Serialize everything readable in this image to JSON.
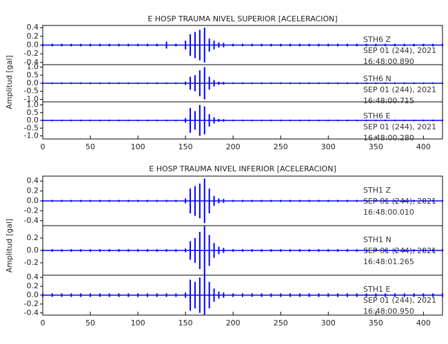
{
  "chart_data": [
    {
      "type": "seismogram",
      "title": "E HOSP TRAUMA NIVEL SUPERIOR [ACELERACION]",
      "y_label": "Amplitud [gal]",
      "xlim": [
        0,
        420
      ],
      "xticks": [
        0,
        50,
        100,
        150,
        200,
        250,
        300,
        350,
        400
      ],
      "x": [
        0,
        10,
        20,
        30,
        40,
        50,
        60,
        70,
        80,
        90,
        100,
        110,
        120,
        130,
        140,
        150,
        155,
        160,
        165,
        170,
        175,
        180,
        185,
        190,
        200,
        210,
        220,
        230,
        240,
        250,
        260,
        270,
        280,
        290,
        300,
        310,
        320,
        330,
        340,
        350,
        360,
        370,
        380,
        390,
        400,
        410,
        420
      ],
      "series": [
        {
          "name": "STH6 Z",
          "date": "SEP 01 (244), 2021",
          "time": "16:48:00.890",
          "color": "#0000ff",
          "ylim": [
            -0.45,
            0.45
          ],
          "yticks": [
            -0.4,
            -0.2,
            {
              "value": 0,
              "label": "0.0"
            },
            0.2,
            0.4
          ],
          "values": [
            0.03,
            0.03,
            0.03,
            0.03,
            0.03,
            0.03,
            0.03,
            0.03,
            0.03,
            0.03,
            0.03,
            0.03,
            0.03,
            0.08,
            0.03,
            0.1,
            0.25,
            0.3,
            0.35,
            0.4,
            0.15,
            0.1,
            0.06,
            0.05,
            0.03,
            0.03,
            0.03,
            0.03,
            0.03,
            0.03,
            0.03,
            0.03,
            0.03,
            0.03,
            0.03,
            0.03,
            0.03,
            0.03,
            0.03,
            0.03,
            0.03,
            0.03,
            0.03,
            0.03,
            0.03,
            0.03,
            0.03
          ]
        },
        {
          "name": "STH6 N",
          "date": "SEP 01 (244), 2021",
          "time": "16:48:00.715",
          "color": "#0000ff",
          "ylim": [
            -1.15,
            1.15
          ],
          "yticks": [
            {
              "value": -1,
              "label": "-1.0"
            },
            -0.5,
            {
              "value": 0,
              "label": "0.0"
            },
            0.5,
            {
              "value": 1,
              "label": "1.0"
            }
          ],
          "values": [
            0.05,
            0.05,
            0.05,
            0.05,
            0.05,
            0.05,
            0.05,
            0.05,
            0.05,
            0.05,
            0.05,
            0.05,
            0.05,
            0.05,
            0.05,
            0.1,
            0.4,
            0.5,
            0.8,
            1.0,
            0.4,
            0.2,
            0.1,
            0.08,
            0.05,
            0.05,
            0.05,
            0.05,
            0.05,
            0.05,
            0.05,
            0.05,
            0.05,
            0.05,
            0.05,
            0.05,
            0.05,
            0.05,
            0.05,
            0.05,
            0.05,
            0.05,
            0.05,
            0.05,
            0.05,
            0.05,
            0.05
          ]
        },
        {
          "name": "STH6 E",
          "date": "SEP 01 (244), 2021",
          "time": "16:48:00.280",
          "color": "#0000ff",
          "ylim": [
            -1.2,
            1.2
          ],
          "yticks": [
            {
              "value": -1,
              "label": "-1.0"
            },
            -0.5,
            {
              "value": 0,
              "label": "0.0"
            },
            0.5,
            {
              "value": 1,
              "label": "1.0"
            }
          ],
          "values": [
            0.05,
            0.05,
            0.05,
            0.05,
            0.05,
            0.05,
            0.05,
            0.05,
            0.05,
            0.05,
            0.05,
            0.05,
            0.05,
            0.05,
            0.05,
            0.15,
            0.8,
            0.6,
            1.0,
            0.9,
            0.4,
            0.2,
            0.1,
            0.08,
            0.05,
            0.05,
            0.05,
            0.05,
            0.05,
            0.05,
            0.05,
            0.05,
            0.05,
            0.05,
            0.05,
            0.05,
            0.05,
            0.05,
            0.05,
            0.05,
            0.05,
            0.05,
            0.05,
            0.05,
            0.05,
            0.05,
            0.05
          ]
        }
      ]
    },
    {
      "type": "seismogram",
      "title": "E HOSP TRAUMA NIVEL INFERIOR [ACELERACION]",
      "y_label": "Amplitud [gal]",
      "xlim": [
        0,
        420
      ],
      "xticks": [
        0,
        50,
        100,
        150,
        200,
        250,
        300,
        350,
        400
      ],
      "x": [
        0,
        10,
        20,
        30,
        40,
        50,
        60,
        70,
        80,
        90,
        100,
        110,
        120,
        130,
        140,
        150,
        155,
        160,
        165,
        170,
        175,
        180,
        185,
        190,
        200,
        210,
        220,
        230,
        240,
        250,
        260,
        270,
        280,
        290,
        300,
        310,
        320,
        330,
        340,
        350,
        360,
        370,
        380,
        390,
        400,
        410,
        420
      ],
      "series": [
        {
          "name": "STH1 Z",
          "date": "SEP 01 (244), 2021",
          "time": "16:48:00.010",
          "color": "#0000ff",
          "ylim": [
            -0.5,
            0.5
          ],
          "yticks": [
            -0.4,
            -0.2,
            {
              "value": 0,
              "label": "0.0"
            },
            0.2,
            0.4
          ],
          "values": [
            0.02,
            0.02,
            0.02,
            0.02,
            0.02,
            0.02,
            0.02,
            0.02,
            0.02,
            0.02,
            0.02,
            0.02,
            0.02,
            0.02,
            0.02,
            0.05,
            0.25,
            0.3,
            0.35,
            0.45,
            0.25,
            0.1,
            0.05,
            0.04,
            0.02,
            0.02,
            0.02,
            0.02,
            0.02,
            0.02,
            0.02,
            0.02,
            0.02,
            0.02,
            0.02,
            0.02,
            0.02,
            0.02,
            0.02,
            0.02,
            0.02,
            0.02,
            0.02,
            0.02,
            0.02,
            0.02,
            0.02
          ]
        },
        {
          "name": "STH1 N",
          "date": "SEP 01 (244), 2021",
          "time": "16:48:01.265",
          "color": "#0000ff",
          "ylim": [
            -0.4,
            0.4
          ],
          "yticks": [
            -0.2,
            {
              "value": 0,
              "label": "0.0"
            },
            0.2
          ],
          "values": [
            0.02,
            0.02,
            0.02,
            0.02,
            0.02,
            0.02,
            0.02,
            0.02,
            0.02,
            0.02,
            0.02,
            0.02,
            0.02,
            0.02,
            0.02,
            0.03,
            0.15,
            0.2,
            0.3,
            0.4,
            0.25,
            0.12,
            0.06,
            0.04,
            0.02,
            0.02,
            0.02,
            0.02,
            0.02,
            0.02,
            0.02,
            0.02,
            0.02,
            0.02,
            0.02,
            0.02,
            0.02,
            0.02,
            0.02,
            0.02,
            0.02,
            0.02,
            0.02,
            0.02,
            0.02,
            0.02,
            0.02
          ]
        },
        {
          "name": "STH1 E",
          "date": "SEP 01 (244), 2021",
          "time": "16:48:00.950",
          "color": "#0000ff",
          "ylim": [
            -0.45,
            0.45
          ],
          "yticks": [
            -0.4,
            -0.2,
            {
              "value": 0,
              "label": "0.0"
            },
            0.2,
            0.4
          ],
          "values": [
            0.04,
            0.04,
            0.04,
            0.04,
            0.04,
            0.04,
            0.04,
            0.04,
            0.04,
            0.04,
            0.04,
            0.04,
            0.04,
            0.04,
            0.04,
            0.06,
            0.35,
            0.3,
            0.4,
            0.45,
            0.3,
            0.15,
            0.08,
            0.06,
            0.04,
            0.04,
            0.04,
            0.04,
            0.04,
            0.04,
            0.04,
            0.04,
            0.04,
            0.04,
            0.04,
            0.04,
            0.04,
            0.04,
            0.04,
            0.04,
            0.04,
            0.04,
            0.04,
            0.04,
            0.04,
            0.04,
            0.04
          ]
        }
      ]
    }
  ]
}
